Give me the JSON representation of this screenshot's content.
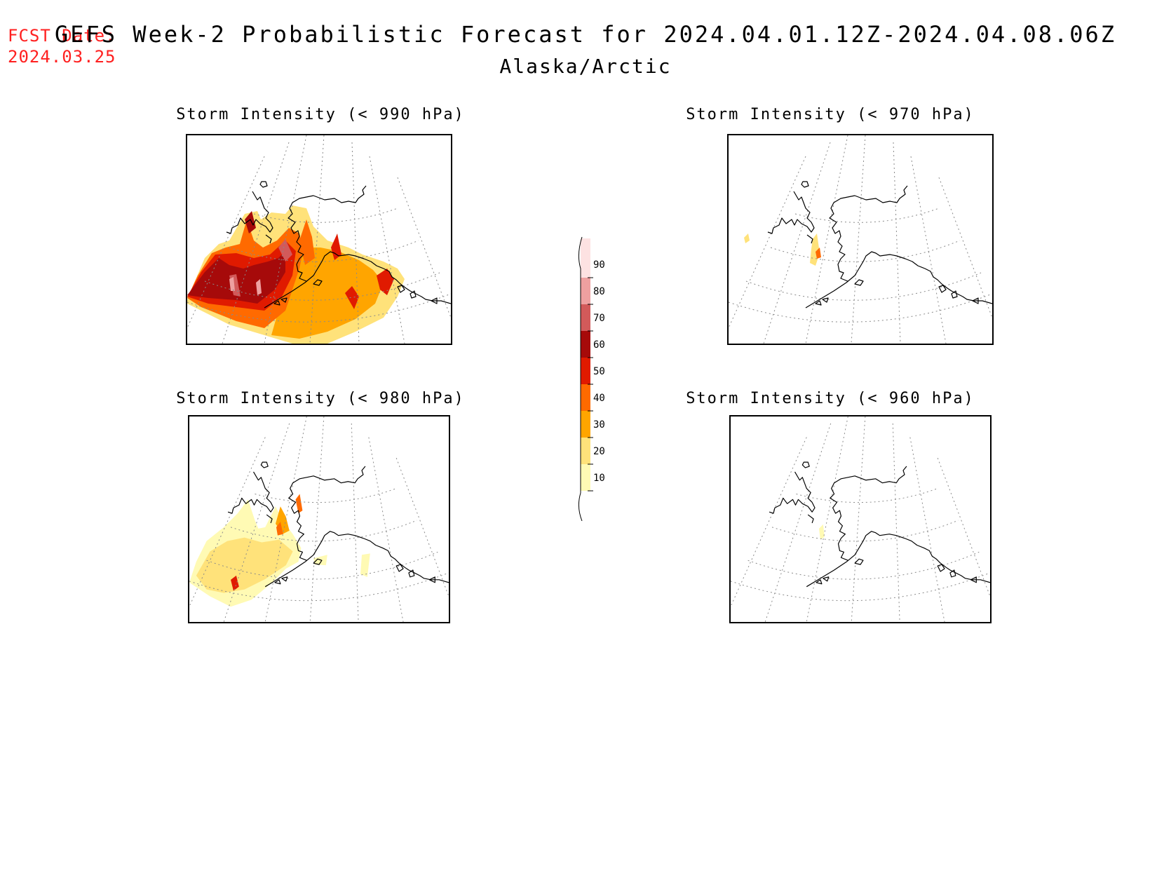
{
  "header": {
    "fcst_label": "FCST Date:",
    "fcst_date": "2024.03.25",
    "title": "GEFS Week-2 Probabilistic Forecast for 2024.04.01.12Z-2024.04.08.06Z",
    "region": "Alaska/Arctic"
  },
  "panels": [
    {
      "id": "p990",
      "title": "Storm Intensity (< 990 hPa)",
      "coverage": "extensive"
    },
    {
      "id": "p970",
      "title": "Storm Intensity (< 970 hPa)",
      "coverage": "minimal"
    },
    {
      "id": "p980",
      "title": "Storm Intensity (< 980 hPa)",
      "coverage": "moderate"
    },
    {
      "id": "p960",
      "title": "Storm Intensity (< 960 hPa)",
      "coverage": "trace"
    }
  ],
  "legend": {
    "levels": [
      "10",
      "20",
      "30",
      "40",
      "50",
      "60",
      "70",
      "80",
      "90"
    ],
    "colors": [
      "#fffab4",
      "#ffe27a",
      "#ffa500",
      "#ff6a00",
      "#e01a00",
      "#a60a0a",
      "#d25a5a",
      "#eea0a0",
      "#fde2e2"
    ]
  },
  "colors": {
    "fcst_date": "#ff2020",
    "coast": "#000000",
    "grid": "#8a8a8a"
  }
}
